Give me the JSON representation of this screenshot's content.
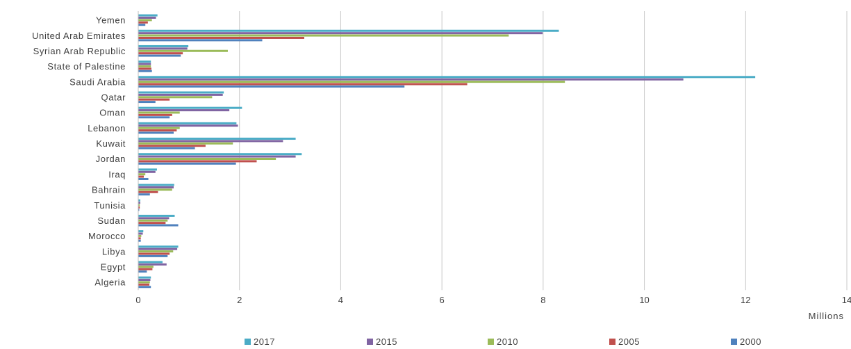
{
  "chart_data": {
    "type": "bar",
    "orientation": "horizontal",
    "categories": [
      "Yemen",
      "United Arab Emirates",
      "Syrian Arab Republic",
      "State of Palestine",
      "Saudi Arabia",
      "Qatar",
      "Oman",
      "Lebanon",
      "Kuwait",
      "Jordan",
      "Iraq",
      "Bahrain",
      "Tunisia",
      "Sudan",
      "Morocco",
      "Libya",
      "Egypt",
      "Algeria"
    ],
    "series": [
      {
        "name": "2017",
        "color": "#4BACC6",
        "values": [
          0.38,
          8.31,
          0.99,
          0.25,
          12.19,
          1.69,
          2.05,
          1.94,
          3.11,
          3.23,
          0.37,
          0.71,
          0.04,
          0.72,
          0.1,
          0.79,
          0.48,
          0.25
        ]
      },
      {
        "name": "2015",
        "color": "#8064A2",
        "values": [
          0.35,
          7.99,
          0.97,
          0.25,
          10.77,
          1.67,
          1.8,
          1.97,
          2.86,
          3.11,
          0.34,
          0.7,
          0.04,
          0.61,
          0.09,
          0.77,
          0.56,
          0.24
        ]
      },
      {
        "name": "2010",
        "color": "#9BBB59",
        "values": [
          0.27,
          7.32,
          1.77,
          0.25,
          8.43,
          1.46,
          0.82,
          0.82,
          1.87,
          2.72,
          0.14,
          0.67,
          0.03,
          0.58,
          0.06,
          0.69,
          0.3,
          0.23
        ]
      },
      {
        "name": "2005",
        "color": "#C0504D",
        "values": [
          0.19,
          3.28,
          0.88,
          0.26,
          6.5,
          0.62,
          0.67,
          0.76,
          1.33,
          2.34,
          0.11,
          0.39,
          0.03,
          0.54,
          0.05,
          0.62,
          0.28,
          0.22
        ]
      },
      {
        "name": "2000",
        "color": "#4F81BD",
        "values": [
          0.14,
          2.45,
          0.84,
          0.27,
          5.26,
          0.34,
          0.62,
          0.7,
          1.12,
          1.93,
          0.2,
          0.23,
          0.02,
          0.79,
          0.05,
          0.58,
          0.17,
          0.25
        ]
      }
    ],
    "xlim": [
      0,
      14
    ],
    "x_ticks": [
      0,
      2,
      4,
      6,
      8,
      10,
      12,
      14
    ],
    "unit_label": "Millions",
    "grid": "vertical",
    "legend": "bottom"
  }
}
